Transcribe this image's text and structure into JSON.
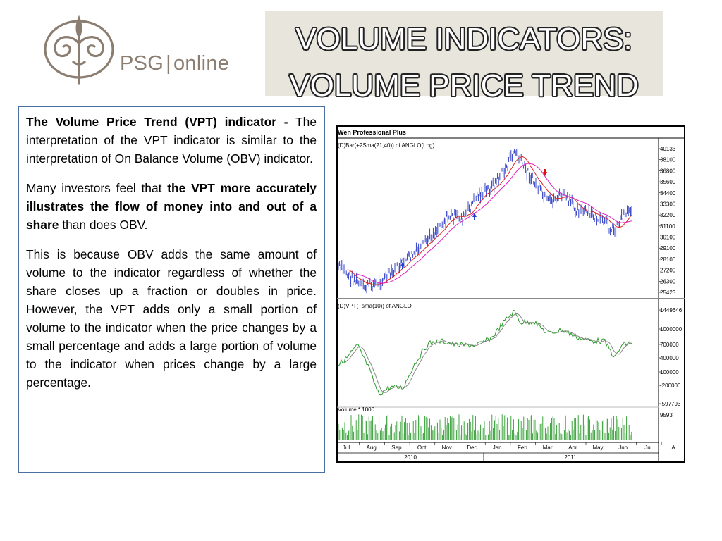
{
  "logo": {
    "brand": "PSG",
    "separator": "|",
    "product": "online"
  },
  "title": {
    "line1": "VOLUME INDICATORS:",
    "line2": "VOLUME PRICE TREND"
  },
  "body": {
    "p1_bold": "The Volume Price Trend (VPT) indicator -",
    "p1_text": " The interpretation of the VPT indicator is similar to the interpretation of On Balance Volume (OBV) indicator.",
    "p2_pre": "Many investors feel that ",
    "p2_bold": "the VPT more accurately illustrates the flow of money into and out of a share",
    "p2_post": " than does OBV.",
    "p3": "This is because OBV adds the same amount of volume to the indicator regardless of whether the share closes up a fraction or doubles in price. However, the VPT adds only a small portion of volume to the indicator when the price changes by a small percentage and adds a large portion of volume to the indicator when prices change by a large percentage."
  },
  "chart": {
    "header": "Wen Professional Plus",
    "price_panel_label": "(D)Bar(+2Sma(21,40)) of ANGLO(Log)",
    "vpt_panel_label": "(D)VPT(+sma(10)) of ANGLO",
    "volume_label": "Volume * 1000",
    "price_ticks": [
      "40133",
      "38100",
      "36800",
      "35600",
      "34400",
      "33300",
      "32200",
      "31100",
      "30100",
      "29100",
      "28100",
      "27200",
      "26300",
      "25423"
    ],
    "vpt_ticks": [
      "1449646",
      "1000000",
      "700000",
      "400000",
      "100000",
      "-200000",
      "-597793"
    ],
    "volume_tick": "9593",
    "months": [
      "Jul",
      "Aug",
      "Sep",
      "Oct",
      "Nov",
      "Dec",
      "Jan",
      "Feb",
      "Mar",
      "Apr",
      "May",
      "Jun",
      "Jul",
      "A"
    ],
    "years": [
      "2010",
      "2011"
    ],
    "colors": {
      "bars": "#2030c0",
      "sma_short": "#e02020",
      "sma_long": "#e020c0",
      "vpt": "#2a9a2a",
      "vpt_sma": "#888888",
      "volume": "#2a9a2a",
      "arrow_up": "#2040d0",
      "arrow_down": "#e01010"
    }
  }
}
